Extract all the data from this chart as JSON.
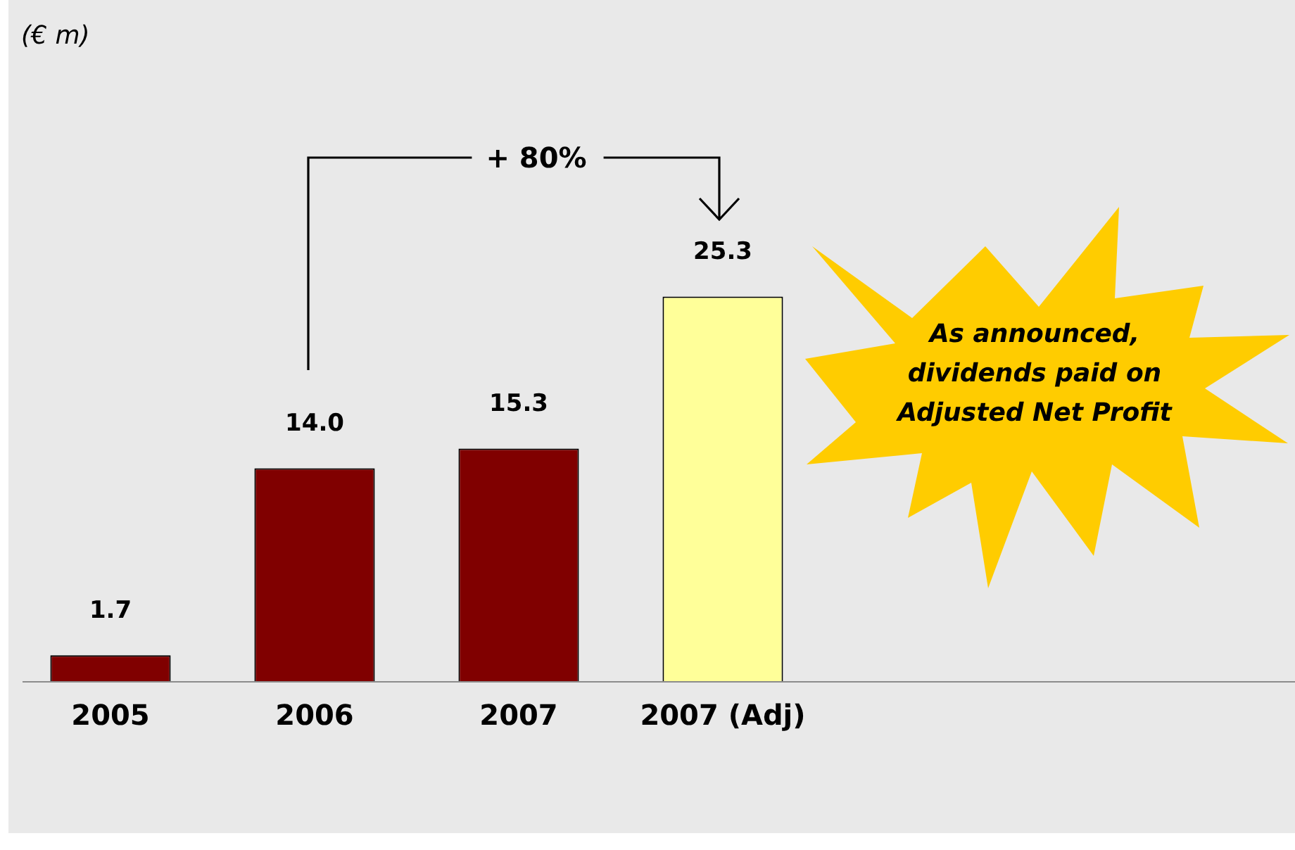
{
  "chart_data": {
    "type": "bar",
    "categories": [
      "2005",
      "2006",
      "2007",
      "2007 (Adj)"
    ],
    "values": [
      1.7,
      14.0,
      15.3,
      25.3
    ],
    "colors": [
      "#800000",
      "#800000",
      "#800000",
      "#ffff99"
    ],
    "value_labels": [
      "1.7",
      "14.0",
      "15.3",
      "25.3"
    ],
    "annotations": [
      "(€ m)",
      "+ 80%",
      "As announced, dividends paid on Adjusted Net Profit"
    ],
    "tick_labels": "x"
  }
}
